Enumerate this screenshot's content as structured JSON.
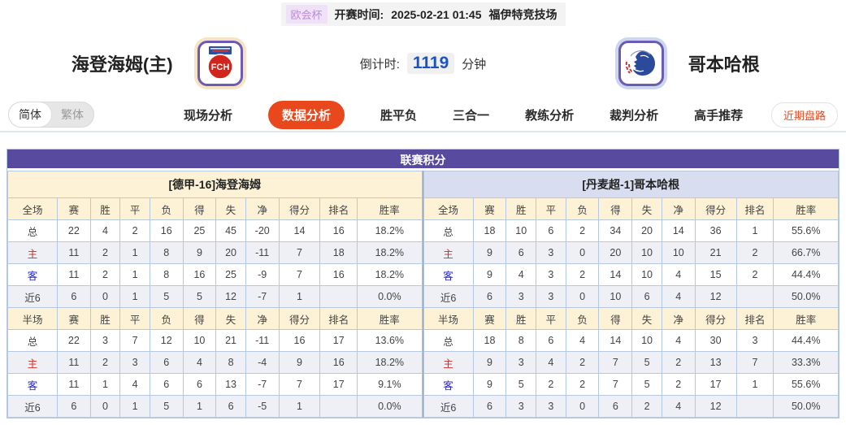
{
  "top_bar": {
    "league_badge": "欧会杯",
    "start_time_label": "开赛时间:",
    "start_time": "2025-02-21 01:45",
    "venue": "福伊特竞技场"
  },
  "match_header": {
    "home_name": "海登海姆(主)",
    "home_logo_text": "FCH",
    "away_name": "哥本哈根",
    "countdown_label": "倒计时:",
    "countdown_value": "1119",
    "countdown_unit": "分钟"
  },
  "nav": {
    "lang_simplified": "简体",
    "lang_traditional": "繁体",
    "tabs": [
      {
        "label": "现场分析",
        "active": false
      },
      {
        "label": "数据分析",
        "active": true
      },
      {
        "label": "胜平负",
        "active": false
      },
      {
        "label": "三合一",
        "active": false
      },
      {
        "label": "教练分析",
        "active": false
      },
      {
        "label": "裁判分析",
        "active": false
      },
      {
        "label": "高手推荐",
        "active": false
      }
    ],
    "recent_trend_button": "近期盘路"
  },
  "league_table": {
    "title": "联赛积分",
    "columns": [
      "赛",
      "胜",
      "平",
      "负",
      "得",
      "失",
      "净",
      "得分",
      "排名",
      "胜率"
    ],
    "left": {
      "team_header": "[德甲-16]海登海姆",
      "sections": [
        {
          "scope": "全场",
          "rows": [
            {
              "label": "总",
              "style": "",
              "values": [
                "22",
                "4",
                "2",
                "16",
                "25",
                "45",
                "-20",
                "14",
                "16",
                "18.2%"
              ]
            },
            {
              "label": "主",
              "style": "red",
              "values": [
                "11",
                "2",
                "1",
                "8",
                "9",
                "20",
                "-11",
                "7",
                "18",
                "18.2%"
              ]
            },
            {
              "label": "客",
              "style": "blue",
              "values": [
                "11",
                "2",
                "1",
                "8",
                "16",
                "25",
                "-9",
                "7",
                "16",
                "18.2%"
              ]
            },
            {
              "label": "近6",
              "style": "",
              "values": [
                "6",
                "0",
                "1",
                "5",
                "5",
                "12",
                "-7",
                "1",
                "",
                "0.0%"
              ]
            }
          ]
        },
        {
          "scope": "半场",
          "rows": [
            {
              "label": "总",
              "style": "",
              "values": [
                "22",
                "3",
                "7",
                "12",
                "10",
                "21",
                "-11",
                "16",
                "17",
                "13.6%"
              ]
            },
            {
              "label": "主",
              "style": "red",
              "values": [
                "11",
                "2",
                "3",
                "6",
                "4",
                "8",
                "-4",
                "9",
                "16",
                "18.2%"
              ]
            },
            {
              "label": "客",
              "style": "blue",
              "values": [
                "11",
                "1",
                "4",
                "6",
                "6",
                "13",
                "-7",
                "7",
                "17",
                "9.1%"
              ]
            },
            {
              "label": "近6",
              "style": "",
              "values": [
                "6",
                "0",
                "1",
                "5",
                "1",
                "6",
                "-5",
                "1",
                "",
                "0.0%"
              ]
            }
          ]
        }
      ]
    },
    "right": {
      "team_header": "[丹麦超-1]哥本哈根",
      "sections": [
        {
          "scope": "全场",
          "rows": [
            {
              "label": "总",
              "style": "",
              "values": [
                "18",
                "10",
                "6",
                "2",
                "34",
                "20",
                "14",
                "36",
                "1",
                "55.6%"
              ]
            },
            {
              "label": "主",
              "style": "red",
              "values": [
                "9",
                "6",
                "3",
                "0",
                "20",
                "10",
                "10",
                "21",
                "2",
                "66.7%"
              ]
            },
            {
              "label": "客",
              "style": "blue",
              "values": [
                "9",
                "4",
                "3",
                "2",
                "14",
                "10",
                "4",
                "15",
                "2",
                "44.4%"
              ]
            },
            {
              "label": "近6",
              "style": "",
              "values": [
                "6",
                "3",
                "3",
                "0",
                "10",
                "6",
                "4",
                "12",
                "",
                "50.0%"
              ]
            }
          ]
        },
        {
          "scope": "半场",
          "rows": [
            {
              "label": "总",
              "style": "",
              "values": [
                "18",
                "8",
                "6",
                "4",
                "14",
                "10",
                "4",
                "30",
                "3",
                "44.4%"
              ]
            },
            {
              "label": "主",
              "style": "red",
              "values": [
                "9",
                "3",
                "4",
                "2",
                "7",
                "5",
                "2",
                "13",
                "7",
                "33.3%"
              ]
            },
            {
              "label": "客",
              "style": "blue",
              "values": [
                "9",
                "5",
                "2",
                "2",
                "7",
                "5",
                "2",
                "17",
                "1",
                "55.6%"
              ]
            },
            {
              "label": "近6",
              "style": "",
              "values": [
                "6",
                "3",
                "3",
                "0",
                "6",
                "2",
                "4",
                "12",
                "",
                "50.0%"
              ]
            }
          ]
        }
      ]
    }
  },
  "colors": {
    "header_purple": "#584a9e",
    "cream": "#fdf2d6",
    "periwinkle": "#d8ddef",
    "accent_orange": "#e8481c",
    "countdown_blue": "#1d53c0",
    "home_label_red": "#d42a22",
    "away_label_blue": "#2525cc",
    "border_blue": "#b5c8e2"
  }
}
